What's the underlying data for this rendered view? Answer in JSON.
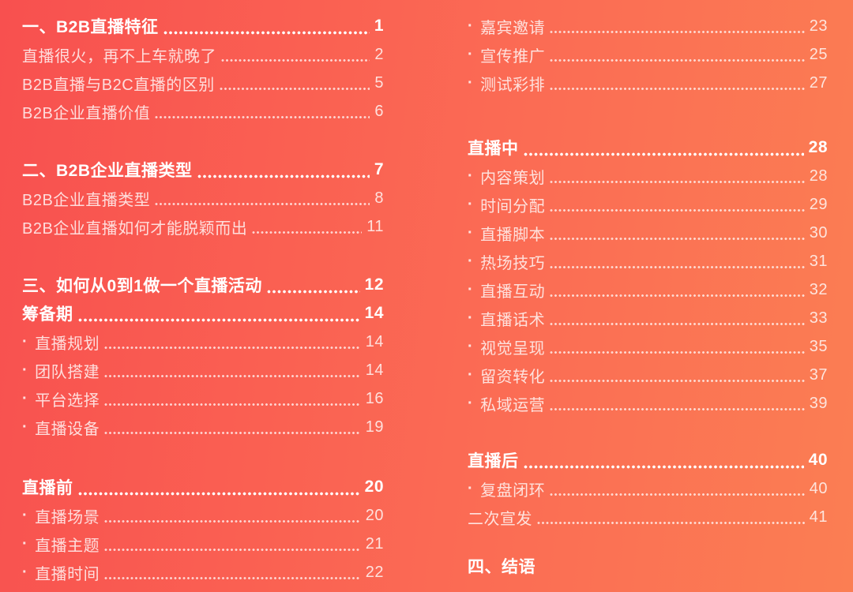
{
  "theme": {
    "background_gradient": [
      "#f8504f",
      "#fb6a54",
      "#fb7e53"
    ],
    "heading_text_color": "#ffffff",
    "item_text_color": "rgba(255,255,255,0.80)"
  },
  "toc": {
    "left": [
      {
        "rows": [
          {
            "bullet": "",
            "label": "一、B2B直播特征",
            "page": "1",
            "level": "section"
          },
          {
            "bullet": "",
            "label": "直播很火，再不上车就晚了",
            "page": "2",
            "level": "item"
          },
          {
            "bullet": "",
            "label": "B2B直播与B2C直播的区别",
            "page": "5",
            "level": "item"
          },
          {
            "bullet": "",
            "label": "B2B企业直播价值",
            "page": "6",
            "level": "item"
          }
        ]
      },
      {
        "rows": [
          {
            "bullet": "",
            "label": "二、B2B企业直播类型",
            "page": "7",
            "level": "section"
          },
          {
            "bullet": "",
            "label": "B2B企业直播类型",
            "page": "8",
            "level": "item"
          },
          {
            "bullet": "",
            "label": "B2B企业直播如何才能脱颖而出",
            "page": "11",
            "level": "item"
          }
        ]
      },
      {
        "rows": [
          {
            "bullet": "",
            "label": "三、如何从0到1做一个直播活动",
            "page": "12",
            "level": "section"
          },
          {
            "bullet": "",
            "label": "筹备期",
            "page": "14",
            "level": "section"
          },
          {
            "bullet": "·",
            "label": "直播规划",
            "page": "14",
            "level": "item"
          },
          {
            "bullet": "·",
            "label": "团队搭建",
            "page": "14",
            "level": "item"
          },
          {
            "bullet": "·",
            "label": "平台选择",
            "page": "16",
            "level": "item"
          },
          {
            "bullet": "·",
            "label": "直播设备",
            "page": "19",
            "level": "item"
          }
        ]
      },
      {
        "rows": [
          {
            "bullet": "",
            "label": "直播前",
            "page": "20",
            "level": "section"
          },
          {
            "bullet": "·",
            "label": "直播场景",
            "page": "20",
            "level": "item"
          },
          {
            "bullet": "·",
            "label": "直播主题",
            "page": "21",
            "level": "item"
          },
          {
            "bullet": "·",
            "label": "直播时间",
            "page": "22",
            "level": "item"
          }
        ]
      }
    ],
    "right": [
      {
        "rows": [
          {
            "bullet": "·",
            "label": "嘉宾邀请",
            "page": "23",
            "level": "item"
          },
          {
            "bullet": "·",
            "label": "宣传推广",
            "page": "25",
            "level": "item"
          },
          {
            "bullet": "·",
            "label": "测试彩排",
            "page": "27",
            "level": "item"
          }
        ]
      },
      {
        "rows": [
          {
            "bullet": "",
            "label": "直播中",
            "page": "28",
            "level": "section"
          },
          {
            "bullet": "·",
            "label": "内容策划",
            "page": "28",
            "level": "item"
          },
          {
            "bullet": "·",
            "label": "时间分配",
            "page": "29",
            "level": "item"
          },
          {
            "bullet": "·",
            "label": "直播脚本",
            "page": "30",
            "level": "item"
          },
          {
            "bullet": "·",
            "label": "热场技巧",
            "page": "31",
            "level": "item"
          },
          {
            "bullet": "·",
            "label": "直播互动",
            "page": "32",
            "level": "item"
          },
          {
            "bullet": "·",
            "label": "直播话术",
            "page": "33",
            "level": "item"
          },
          {
            "bullet": "·",
            "label": "视觉呈现",
            "page": "35",
            "level": "item"
          },
          {
            "bullet": "·",
            "label": "留资转化",
            "page": "37",
            "level": "item"
          },
          {
            "bullet": "·",
            "label": "私域运营",
            "page": "39",
            "level": "item"
          }
        ]
      },
      {
        "rows": [
          {
            "bullet": "",
            "label": "直播后",
            "page": "40",
            "level": "section"
          },
          {
            "bullet": "·",
            "label": "复盘闭环",
            "page": "40",
            "level": "item"
          },
          {
            "bullet": "",
            "label": "二次宣发",
            "page": "41",
            "level": "item"
          }
        ]
      },
      {
        "rows": [
          {
            "bullet": "",
            "label": "四、结语",
            "page": "",
            "level": "section"
          }
        ]
      }
    ]
  }
}
